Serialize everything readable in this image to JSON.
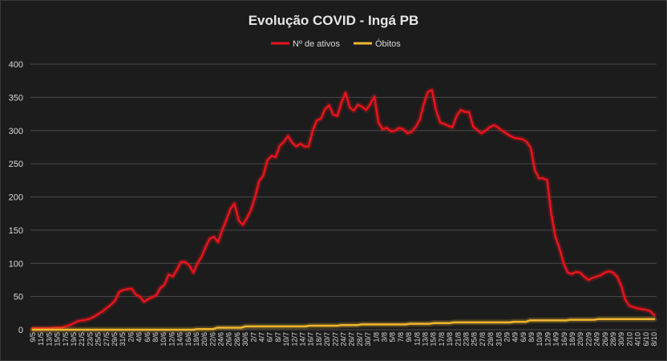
{
  "chart_data": {
    "type": "line",
    "title": "Evolução COVID - Ingá PB",
    "legend_position": "top-center",
    "grid": true,
    "ylim": [
      0,
      400
    ],
    "yticks": [
      0,
      50,
      100,
      150,
      200,
      250,
      300,
      350,
      400
    ],
    "xlabel": "",
    "ylabel": "",
    "tick_labels": [
      "9/5",
      "11/5",
      "13/5",
      "15/5",
      "17/5",
      "19/5",
      "21/5",
      "23/5",
      "25/5",
      "27/5",
      "29/5",
      "31/5",
      "2/6",
      "4/6",
      "6/6",
      "8/6",
      "10/6",
      "12/6",
      "14/6",
      "16/6",
      "18/6",
      "20/6",
      "22/6",
      "24/6",
      "26/6",
      "28/6",
      "30/6",
      "2/7",
      "4/7",
      "6/7",
      "8/7",
      "10/7",
      "12/7",
      "14/7",
      "16/7",
      "18/7",
      "20/7",
      "22/7",
      "24/7",
      "26/7",
      "28/7",
      "30/7",
      "1/8",
      "3/8",
      "5/8",
      "7/8",
      "9/8",
      "11/8",
      "13/8",
      "15/8",
      "17/8",
      "19/8",
      "21/8",
      "23/8",
      "25/8",
      "27/8",
      "29/8",
      "31/8",
      "2/9",
      "4/9",
      "6/9",
      "8/9",
      "10/9",
      "12/9",
      "14/9",
      "16/9",
      "18/9",
      "20/9",
      "22/9",
      "24/9",
      "26/9",
      "28/9",
      "30/9",
      "2/10",
      "4/10",
      "6/10",
      "8/10"
    ],
    "series": [
      {
        "name": "Nº de ativos",
        "color": "#e8141c",
        "values": [
          2,
          2,
          2,
          2,
          2,
          3,
          3,
          3,
          5,
          7,
          10,
          13,
          14,
          15,
          17,
          20,
          24,
          28,
          33,
          38,
          44,
          57,
          60,
          61,
          62,
          53,
          50,
          42,
          46,
          49,
          52,
          63,
          68,
          83,
          80,
          90,
          102,
          102,
          97,
          86,
          100,
          110,
          125,
          137,
          140,
          132,
          150,
          165,
          182,
          190,
          165,
          158,
          168,
          180,
          200,
          224,
          232,
          255,
          262,
          260,
          277,
          283,
          292,
          282,
          276,
          280,
          276,
          276,
          300,
          315,
          318,
          332,
          338,
          324,
          322,
          342,
          357,
          335,
          330,
          339,
          336,
          331,
          340,
          351,
          312,
          302,
          304,
          299,
          300,
          304,
          302,
          296,
          298,
          305,
          316,
          340,
          358,
          361,
          330,
          312,
          310,
          307,
          305,
          322,
          331,
          328,
          328,
          306,
          301,
          296,
          300,
          305,
          308,
          305,
          300,
          296,
          292,
          289,
          288,
          287,
          283,
          274,
          240,
          228,
          228,
          225,
          174,
          140,
          122,
          100,
          86,
          84,
          87,
          86,
          80,
          75,
          78,
          80,
          82,
          86,
          88,
          86,
          80,
          66,
          45,
          36,
          34,
          32,
          31,
          30,
          28,
          22
        ]
      },
      {
        "name": "Óbitos",
        "color": "#f0b830",
        "values": [
          0,
          0,
          0,
          0,
          0,
          0,
          0,
          0,
          0,
          0,
          0,
          0,
          0,
          0,
          0,
          0,
          0,
          0,
          0,
          0,
          0,
          0,
          0,
          0,
          0,
          0,
          0,
          0,
          0,
          0,
          0,
          0,
          0,
          0,
          0,
          0,
          0,
          0,
          0,
          0,
          0,
          1,
          1,
          1,
          1,
          1,
          3,
          3,
          3,
          3,
          3,
          3,
          3,
          5,
          5,
          5,
          5,
          5,
          5,
          5,
          5,
          5,
          5,
          5,
          5,
          5,
          5,
          5,
          5,
          6,
          6,
          6,
          6,
          6,
          6,
          6,
          6,
          7,
          7,
          7,
          7,
          7,
          8,
          8,
          8,
          8,
          8,
          8,
          8,
          8,
          8,
          8,
          8,
          8,
          9,
          9,
          9,
          9,
          9,
          9,
          10,
          10,
          10,
          10,
          10,
          11,
          11,
          11,
          11,
          11,
          11,
          11,
          11,
          11,
          11,
          11,
          11,
          11,
          11,
          11,
          12,
          12,
          12,
          12,
          14,
          14,
          14,
          14,
          14,
          14,
          14,
          14,
          14,
          14,
          15,
          15,
          15,
          15,
          15,
          15,
          15,
          16,
          16,
          16,
          16,
          16,
          16,
          16,
          16,
          16,
          16,
          16,
          16,
          16,
          16,
          16
        ]
      }
    ]
  }
}
